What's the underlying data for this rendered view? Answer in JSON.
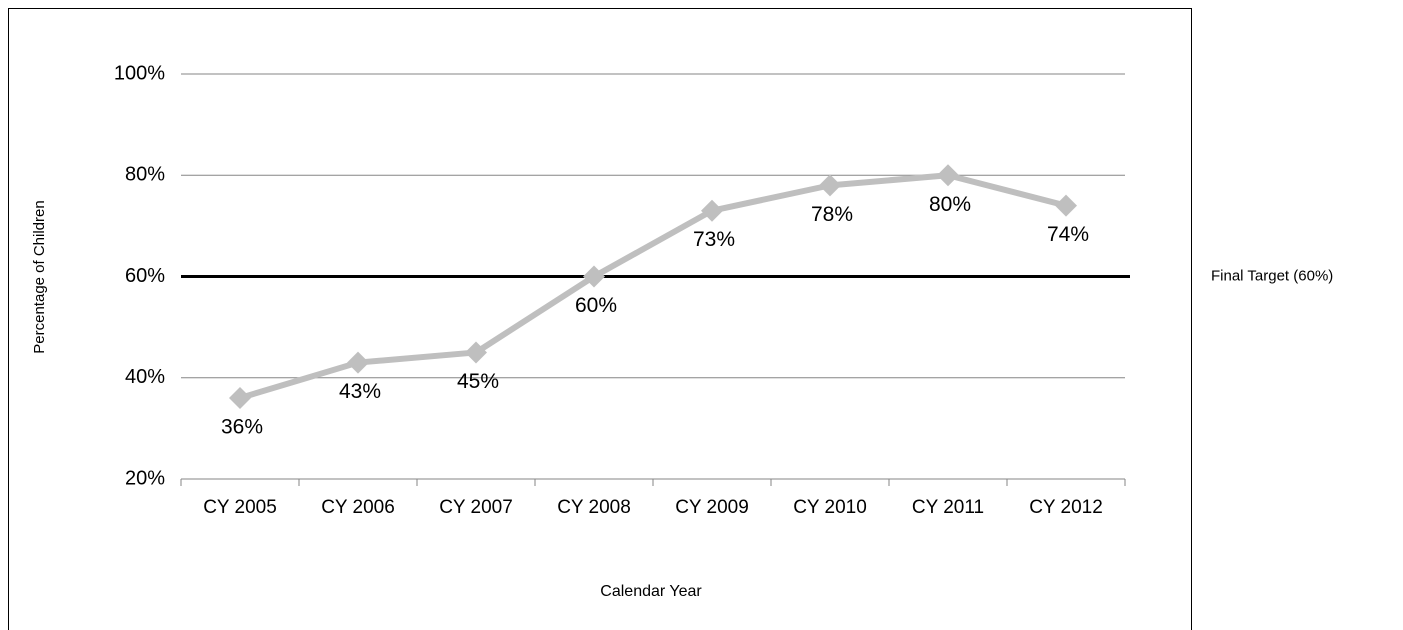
{
  "chart_data": {
    "type": "line",
    "y_axis_label": "Percentage of Children",
    "x_axis_label": "Calendar Year",
    "categories": [
      "CY 2005",
      "CY 2006",
      "CY 2007",
      "CY 2008",
      "CY 2009",
      "CY 2010",
      "CY 2011",
      "CY 2012"
    ],
    "values": [
      36,
      43,
      45,
      60,
      73,
      78,
      80,
      74
    ],
    "value_labels": [
      "36%",
      "43%",
      "45%",
      "60%",
      "73%",
      "78%",
      "80%",
      "74%"
    ],
    "color": "#bfbfbf",
    "ylim": [
      20,
      100
    ],
    "yticks": [
      {
        "value": 20,
        "label": "20%"
      },
      {
        "value": 40,
        "label": "40%"
      },
      {
        "value": 60,
        "label": "60%"
      },
      {
        "value": 80,
        "label": "80%"
      },
      {
        "value": 100,
        "label": "100%"
      }
    ],
    "grid": true,
    "target": {
      "value": 60,
      "label": "Final Target (60%)",
      "color": "#000000"
    }
  }
}
